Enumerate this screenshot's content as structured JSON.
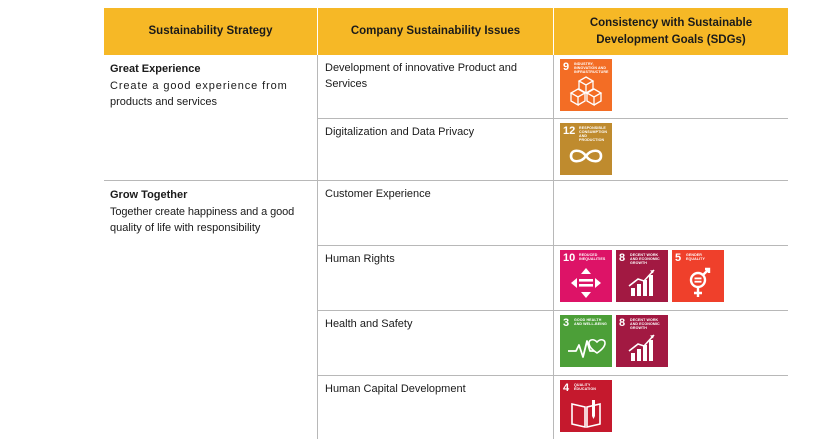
{
  "headers": {
    "strategy": "Sustainability Strategy",
    "issues": "Company Sustainability Issues",
    "sdgs": "Consistency with Sustainable Development Goals (SDGs)"
  },
  "strategies": [
    {
      "title": "Great Experience",
      "desc_line1": "Create a good experience from",
      "desc_line2": "products and services"
    },
    {
      "title": "Grow Together",
      "desc_line1": "Together create happiness and a good",
      "desc_line2": "quality of life with responsibility"
    }
  ],
  "issues": [
    {
      "label": "Development of innovative Product and Services"
    },
    {
      "label": "Digitalization and Data Privacy"
    },
    {
      "label": "Customer Experience"
    },
    {
      "label": "Human Rights"
    },
    {
      "label": "Health and Safety"
    },
    {
      "label": "Human Capital Development"
    }
  ],
  "sdg_tiles": {
    "sdg9": {
      "number": "9",
      "caption": "Industry, Innovation and Infrastructure",
      "color": "#f36d25",
      "icon": "cubes-icon"
    },
    "sdg12": {
      "number": "12",
      "caption": "Responsible Consumption and Production",
      "color": "#bf8b2e",
      "icon": "infinity-icon"
    },
    "sdg10": {
      "number": "10",
      "caption": "Reduced Inequalities",
      "color": "#dd1367",
      "icon": "equality-arrows-icon"
    },
    "sdg8": {
      "number": "8",
      "caption": "Decent Work and Economic Growth",
      "color": "#a21942",
      "icon": "growth-chart-icon"
    },
    "sdg5": {
      "number": "5",
      "caption": "Gender Equality",
      "color": "#ef402b",
      "icon": "gender-icon"
    },
    "sdg3": {
      "number": "3",
      "caption": "Good Health and Well-Being",
      "color": "#4c9f38",
      "icon": "heartbeat-icon"
    },
    "sdg4": {
      "number": "4",
      "caption": "Quality Education",
      "color": "#c5192d",
      "icon": "book-icon"
    }
  }
}
